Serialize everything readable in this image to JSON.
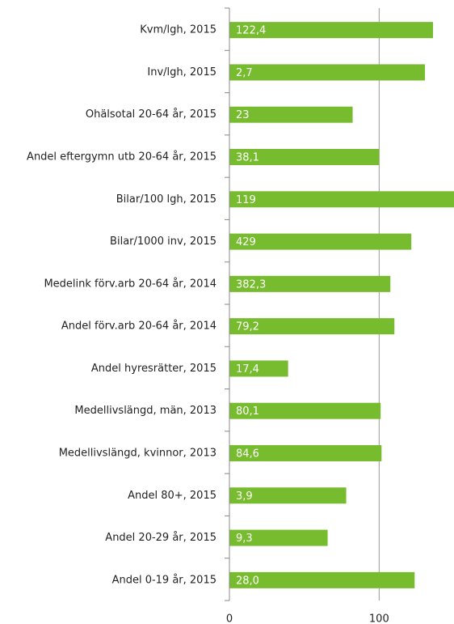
{
  "chart_data": {
    "type": "bar",
    "orientation": "horizontal",
    "categories": [
      "Kvm/lgh, 2015",
      "Inv/lgh, 2015",
      "Ohälsotal 20-64 år, 2015",
      "Andel eftergymn utb 20-64 år, 2015",
      "Bilar/100 lgh, 2015",
      "Bilar/1000 inv, 2015",
      "Medelink förv.arb 20-64 år, 2014",
      "Andel förv.arb 20-64 år, 2014",
      "Andel hyresrätter, 2015",
      "Medellivslängd, män, 2013",
      "Medellivslängd, kvinnor, 2013",
      "Andel 80+, 2015",
      "Andel 20-29 år, 2015",
      "Andel 0-19 år, 2015"
    ],
    "values": [
      136,
      130.6,
      82.3,
      100,
      150,
      121.5,
      107.5,
      110.2,
      39.2,
      101,
      101.6,
      78,
      65.6,
      123.7
    ],
    "annotations": [
      "122,4",
      "2,7",
      "23",
      "38,1",
      "119",
      "429",
      "382,3",
      "79,2",
      "17,4",
      "80,1",
      "84,6",
      "3,9",
      "9,3",
      "28,0"
    ],
    "color": "#77bc2f",
    "xlim": [
      0,
      150
    ],
    "xticks": [
      0,
      100
    ],
    "grid": true
  }
}
